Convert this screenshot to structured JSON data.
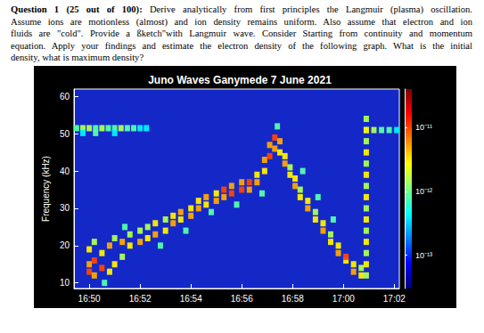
{
  "question": {
    "heading": "Question 1 (25 out of 100):",
    "lines": [
      "Derive analytically from first principles the Langmuir (plasma) oscillation.",
      "Assume ions are motionless (almost) and ion density remains uniform. Also assume that electron and ion",
      "fluids are \"cold\". Provide a ßketch\"with Langmuir wave. Consider Starting from continuity and momentum",
      "equation. Apply your findings and estimate the electron density of the following graph. What is the initial",
      "density, what is maximum density?"
    ]
  },
  "chart_data": {
    "type": "scatter",
    "title": "Juno Waves Ganymede 7 June 2021",
    "ylabel": "Frequency (kHz)",
    "marker": "square",
    "xlim": [
      1009.4,
      1022.2
    ],
    "xticks": [
      {
        "value": 1010,
        "label": "16:50"
      },
      {
        "value": 1012,
        "label": "16:52"
      },
      {
        "value": 1014,
        "label": "16:54"
      },
      {
        "value": 1016,
        "label": "16:56"
      },
      {
        "value": 1018,
        "label": "16:58"
      },
      {
        "value": 1020,
        "label": "17:00"
      },
      {
        "value": 1022,
        "label": "17:02"
      }
    ],
    "ylim": [
      8.5,
      62
    ],
    "yticks": [
      10,
      20,
      30,
      40,
      50,
      60
    ],
    "colorbar_range": [
      3e-14,
      4e-11
    ],
    "colorbar_ticks": [
      {
        "value": 1e-13,
        "label": "10⁻¹³"
      },
      {
        "value": 1e-12,
        "label": "10⁻¹²"
      },
      {
        "value": 1e-11,
        "label": "10⁻¹¹"
      }
    ],
    "cells": [
      [
        1009.5,
        51.5,
        8e-13
      ],
      [
        1009.75,
        51.5,
        1.5e-12
      ],
      [
        1010.0,
        51.5,
        1.5e-12
      ],
      [
        1010.25,
        51.5,
        8e-13
      ],
      [
        1010.5,
        51.5,
        1.5e-12
      ],
      [
        1010.75,
        51.5,
        8e-13
      ],
      [
        1011.0,
        51.5,
        8e-13
      ],
      [
        1011.25,
        51.5,
        1.5e-12
      ],
      [
        1011.5,
        51.5,
        8e-13
      ],
      [
        1011.75,
        51.5,
        8e-13
      ],
      [
        1012.0,
        51.5,
        4e-13
      ],
      [
        1012.25,
        51.5,
        4e-13
      ],
      [
        1009.75,
        50.2,
        4e-13
      ],
      [
        1010.25,
        50.2,
        8e-13
      ],
      [
        1011.0,
        50.2,
        4e-13
      ],
      [
        1020.9,
        51.0,
        8e-13
      ],
      [
        1021.2,
        51.0,
        1.5e-12
      ],
      [
        1021.5,
        51.0,
        8e-13
      ],
      [
        1021.8,
        51.0,
        8e-13
      ],
      [
        1022.1,
        51.0,
        4e-13
      ],
      [
        1010.0,
        13,
        1e-11
      ],
      [
        1010.0,
        15,
        5e-12
      ],
      [
        1010.0,
        19,
        3e-12
      ],
      [
        1010.2,
        12,
        5e-12
      ],
      [
        1010.2,
        16,
        1e-11
      ],
      [
        1010.2,
        21,
        1.5e-12
      ],
      [
        1010.5,
        14,
        1e-11
      ],
      [
        1010.5,
        18,
        3e-12
      ],
      [
        1010.8,
        13,
        3e-12
      ],
      [
        1010.8,
        20,
        5e-12
      ],
      [
        1011.0,
        15,
        3e-12
      ],
      [
        1011.0,
        22,
        1.5e-12
      ],
      [
        1011.3,
        17,
        1.5e-12
      ],
      [
        1011.3,
        21,
        5e-12
      ],
      [
        1011.6,
        20,
        3e-12
      ],
      [
        1011.6,
        23,
        1.5e-12
      ],
      [
        1012.0,
        21,
        5e-12
      ],
      [
        1012.0,
        24,
        1.5e-12
      ],
      [
        1012.3,
        22,
        3e-12
      ],
      [
        1012.3,
        25,
        1.5e-12
      ],
      [
        1012.6,
        23,
        5e-12
      ],
      [
        1012.6,
        26,
        3e-12
      ],
      [
        1013.0,
        24,
        3e-12
      ],
      [
        1013.0,
        27,
        1.5e-12
      ],
      [
        1013.3,
        26,
        5e-12
      ],
      [
        1013.3,
        28,
        3e-12
      ],
      [
        1013.6,
        27,
        3e-12
      ],
      [
        1013.6,
        29,
        5e-12
      ],
      [
        1014.0,
        28,
        5e-12
      ],
      [
        1014.0,
        30,
        3e-12
      ],
      [
        1014.3,
        30,
        5e-12
      ],
      [
        1014.3,
        32,
        3e-12
      ],
      [
        1014.6,
        31,
        3e-12
      ],
      [
        1014.6,
        33,
        5e-12
      ],
      [
        1015.0,
        32,
        5e-12
      ],
      [
        1015.0,
        34,
        3e-12
      ],
      [
        1015.3,
        33,
        5e-12
      ],
      [
        1015.3,
        35,
        1e-11
      ],
      [
        1015.6,
        34,
        1e-11
      ],
      [
        1015.6,
        36,
        5e-12
      ],
      [
        1016.0,
        35,
        1e-11
      ],
      [
        1016.0,
        37,
        5e-12
      ],
      [
        1016.3,
        35,
        5e-12
      ],
      [
        1016.3,
        37,
        1e-11
      ],
      [
        1016.6,
        37,
        5e-12
      ],
      [
        1016.6,
        39,
        3e-12
      ],
      [
        1016.9,
        40,
        3e-12
      ],
      [
        1016.9,
        43,
        5e-12
      ],
      [
        1017.1,
        44,
        1e-11
      ],
      [
        1017.1,
        47,
        5e-12
      ],
      [
        1017.3,
        46,
        5e-12
      ],
      [
        1017.3,
        49,
        1e-11
      ],
      [
        1017.5,
        45,
        3e-12
      ],
      [
        1017.5,
        48,
        5e-12
      ],
      [
        1017.7,
        42,
        5e-12
      ],
      [
        1017.7,
        44,
        3e-12
      ],
      [
        1017.9,
        39,
        3e-12
      ],
      [
        1017.9,
        41,
        1.5e-12
      ],
      [
        1018.1,
        36,
        5e-12
      ],
      [
        1018.1,
        38,
        3e-12
      ],
      [
        1018.3,
        33,
        3e-12
      ],
      [
        1018.3,
        35,
        1.5e-12
      ],
      [
        1018.6,
        30,
        5e-12
      ],
      [
        1018.6,
        32,
        3e-12
      ],
      [
        1018.9,
        27,
        3e-12
      ],
      [
        1018.9,
        29,
        1.5e-12
      ],
      [
        1019.2,
        24,
        5e-12
      ],
      [
        1019.2,
        26,
        3e-12
      ],
      [
        1019.5,
        21,
        3e-12
      ],
      [
        1019.5,
        23,
        1.5e-12
      ],
      [
        1019.8,
        18,
        5e-12
      ],
      [
        1019.8,
        20,
        3e-12
      ],
      [
        1020.1,
        16,
        3e-12
      ],
      [
        1020.1,
        17,
        1e-11
      ],
      [
        1020.4,
        13,
        5e-12
      ],
      [
        1020.4,
        15,
        3e-12
      ],
      [
        1020.7,
        12,
        3e-12
      ],
      [
        1020.7,
        14,
        1.5e-12
      ],
      [
        1020.9,
        12,
        1.5e-12
      ],
      [
        1020.9,
        15,
        3e-12
      ],
      [
        1020.9,
        18,
        1.5e-12
      ],
      [
        1020.9,
        21,
        3e-12
      ],
      [
        1020.9,
        24,
        1.5e-12
      ],
      [
        1020.9,
        27,
        3e-12
      ],
      [
        1020.9,
        30,
        1.5e-12
      ],
      [
        1020.9,
        33,
        3e-12
      ],
      [
        1020.9,
        36,
        1.5e-12
      ],
      [
        1020.9,
        39,
        3e-12
      ],
      [
        1020.9,
        42,
        1.5e-12
      ],
      [
        1020.9,
        45,
        3e-12
      ],
      [
        1020.9,
        48,
        1.5e-12
      ],
      [
        1020.9,
        51,
        3e-12
      ],
      [
        1020.9,
        54,
        1.5e-12
      ],
      [
        1012.8,
        20,
        8e-13
      ],
      [
        1013.8,
        24,
        8e-13
      ],
      [
        1014.8,
        29,
        8e-13
      ],
      [
        1015.8,
        31,
        8e-13
      ],
      [
        1016.8,
        34,
        8e-13
      ],
      [
        1017.4,
        52,
        8e-13
      ],
      [
        1018.4,
        40,
        8e-13
      ],
      [
        1019.0,
        33,
        8e-13
      ],
      [
        1019.6,
        27,
        8e-13
      ],
      [
        1010.6,
        10,
        8e-13
      ],
      [
        1011.4,
        25,
        8e-13
      ]
    ]
  }
}
